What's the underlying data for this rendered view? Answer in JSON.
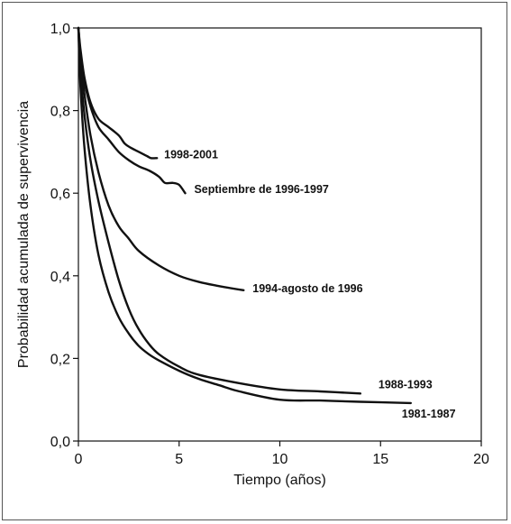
{
  "chart_data": {
    "type": "line",
    "title": "",
    "xlabel": "Tiempo (años)",
    "ylabel": "Probabilidad acumulada de supervivencia",
    "xlim": [
      0,
      20
    ],
    "ylim": [
      0,
      1
    ],
    "xticks": [
      0,
      5,
      10,
      15,
      20
    ],
    "xtick_labels": [
      "0",
      "5",
      "10",
      "15",
      "20"
    ],
    "yticks": [
      0,
      0.2,
      0.4,
      0.6,
      0.8,
      1.0
    ],
    "ytick_labels": [
      "0,0",
      "0,2",
      "0,4",
      "0,6",
      "0,8",
      "1,0"
    ],
    "grid": false,
    "legend": "none",
    "series": [
      {
        "name": "1998-2001",
        "x": [
          0,
          0.1,
          0.3,
          0.6,
          1.0,
          1.5,
          2.0,
          2.3,
          2.6,
          3.0,
          3.4,
          3.6,
          3.9
        ],
        "y": [
          1.0,
          0.95,
          0.88,
          0.82,
          0.78,
          0.76,
          0.74,
          0.72,
          0.71,
          0.7,
          0.69,
          0.685,
          0.685
        ]
      },
      {
        "name": "Septiembre de 1996-1997",
        "x": [
          0,
          0.1,
          0.3,
          0.6,
          1.0,
          1.5,
          2.0,
          2.5,
          3.0,
          3.5,
          4.0,
          4.3,
          4.7,
          5.0,
          5.3
        ],
        "y": [
          1.0,
          0.94,
          0.87,
          0.81,
          0.76,
          0.73,
          0.7,
          0.68,
          0.665,
          0.655,
          0.64,
          0.625,
          0.625,
          0.62,
          0.6
        ]
      },
      {
        "name": "1994-agosto de 1996",
        "x": [
          0,
          0.1,
          0.3,
          0.6,
          1.0,
          1.5,
          2.0,
          2.5,
          3.0,
          4.0,
          5.0,
          6.0,
          7.0,
          8.2
        ],
        "y": [
          1.0,
          0.93,
          0.84,
          0.74,
          0.65,
          0.57,
          0.52,
          0.49,
          0.46,
          0.425,
          0.4,
          0.385,
          0.375,
          0.365
        ]
      },
      {
        "name": "1988-1993",
        "x": [
          0,
          0.1,
          0.3,
          0.6,
          1.0,
          1.5,
          2.0,
          2.5,
          3.0,
          3.5,
          4.0,
          5.0,
          6.0,
          8.0,
          10.0,
          12.0,
          14.0
        ],
        "y": [
          1.0,
          0.9,
          0.79,
          0.68,
          0.58,
          0.48,
          0.39,
          0.32,
          0.27,
          0.235,
          0.21,
          0.18,
          0.16,
          0.14,
          0.125,
          0.12,
          0.115
        ]
      },
      {
        "name": "1981-1987",
        "x": [
          0,
          0.1,
          0.3,
          0.6,
          1.0,
          1.5,
          2.0,
          2.5,
          3.0,
          3.5,
          4.0,
          5.0,
          6.0,
          7.0,
          8.0,
          10.0,
          12.0,
          14.0,
          16.5
        ],
        "y": [
          1.0,
          0.86,
          0.71,
          0.57,
          0.45,
          0.36,
          0.3,
          0.26,
          0.23,
          0.21,
          0.195,
          0.17,
          0.15,
          0.135,
          0.12,
          0.1,
          0.098,
          0.095,
          0.092
        ]
      }
    ]
  }
}
